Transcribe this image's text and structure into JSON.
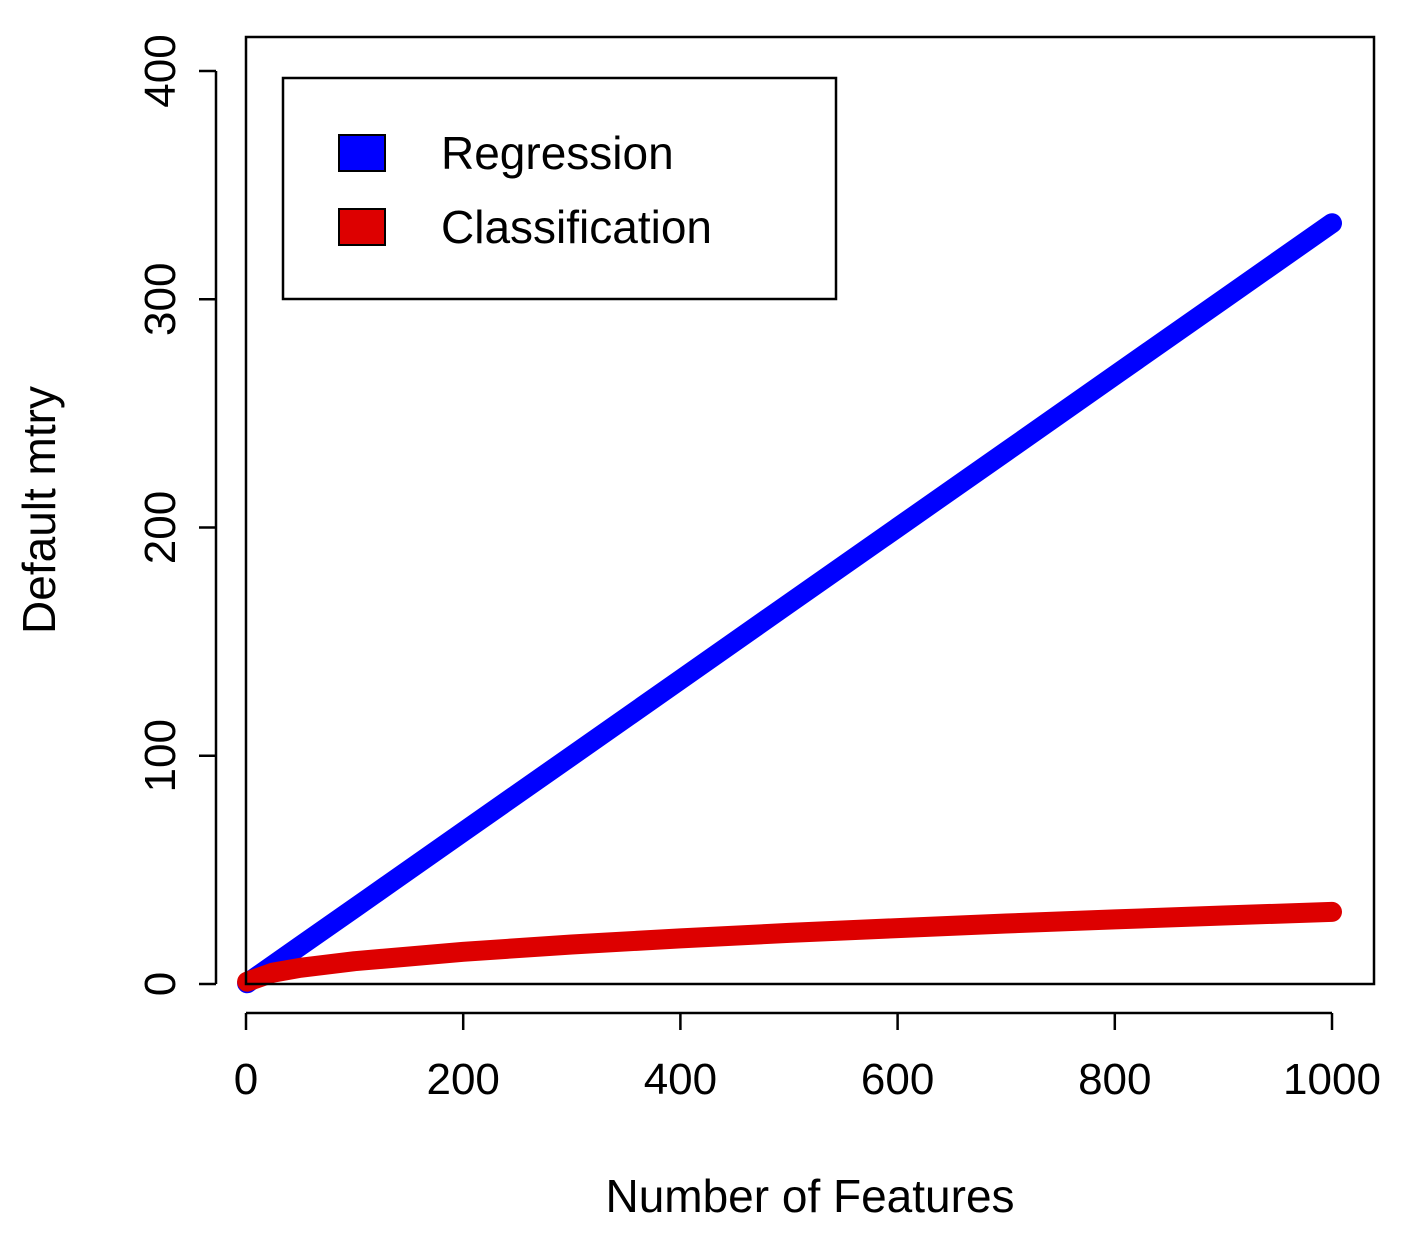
{
  "chart_data": {
    "type": "line",
    "title": "",
    "xlabel": "Number of Features",
    "ylabel": "Default mtry",
    "xlim": [
      0,
      1000
    ],
    "ylim": [
      0,
      400
    ],
    "xticks": [
      0,
      200,
      400,
      600,
      800,
      1000
    ],
    "yticks": [
      0,
      100,
      200,
      300,
      400
    ],
    "grid": false,
    "legend_position": "top-left",
    "series": [
      {
        "name": "Regression",
        "color": "#0000ff",
        "formula": "x/3",
        "x": [
          1,
          50,
          100,
          200,
          300,
          400,
          500,
          600,
          700,
          800,
          900,
          1000
        ],
        "y": [
          0.3,
          16.7,
          33.3,
          66.7,
          100,
          133.3,
          166.7,
          200,
          233.3,
          266.7,
          300,
          333.3
        ]
      },
      {
        "name": "Classification",
        "color": "#dd0000",
        "formula": "sqrt(x)",
        "x": [
          1,
          25,
          50,
          100,
          200,
          300,
          400,
          500,
          600,
          700,
          800,
          900,
          1000
        ],
        "y": [
          1,
          5,
          7.1,
          10,
          14.1,
          17.3,
          20,
          22.4,
          24.5,
          26.5,
          28.3,
          30,
          31.6
        ]
      }
    ]
  }
}
